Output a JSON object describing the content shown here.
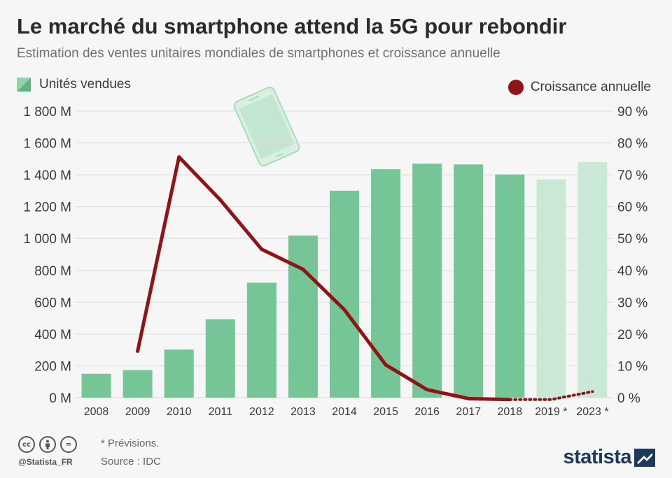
{
  "header": {
    "title": "Le marché du smartphone attend la 5G pour rebondir",
    "subtitle": "Estimation des ventes unitaires mondiales de smartphones et croissance annuelle"
  },
  "legend": {
    "bars_label": "Unités vendues",
    "line_label": "Croissance annuelle"
  },
  "footer": {
    "note": "* Prévisions.",
    "source": "Source : IDC",
    "handle": "@Statista_FR",
    "logo": "statista",
    "cc_icons": [
      "cc",
      "by",
      "="
    ]
  },
  "colors": {
    "bar": "#76c597",
    "bar_forecast": "#c9e8d5",
    "line": "#8f1416",
    "text": "#3a3a3a",
    "background": "#f6f6f6"
  },
  "chart_data": {
    "type": "bar",
    "title": "Le marché du smartphone attend la 5G pour rebondir",
    "categories": [
      "2008",
      "2009",
      "2010",
      "2011",
      "2012",
      "2013",
      "2014",
      "2015",
      "2016",
      "2017",
      "2018",
      "2019 *",
      "2023 *"
    ],
    "forecast": [
      false,
      false,
      false,
      false,
      false,
      false,
      false,
      false,
      false,
      false,
      false,
      true,
      true
    ],
    "series": [
      {
        "name": "Unités vendues",
        "type": "bar",
        "axis": "left",
        "values": [
          150,
          173,
          302,
          492,
          722,
          1018,
          1300,
          1435,
          1470,
          1465,
          1402,
          1371,
          1480
        ]
      },
      {
        "name": "Croissance annuelle",
        "type": "line",
        "axis": "right",
        "values": [
          null,
          14.6,
          75.6,
          62.1,
          46.6,
          40.3,
          27.6,
          10.3,
          2.5,
          -0.3,
          -0.6,
          -0.6,
          1.9
        ],
        "dotted_from_index": 11
      }
    ],
    "y_left": {
      "ticks": [
        "0 M",
        "200 M",
        "400 M",
        "600 M",
        "800 M",
        "1 000 M",
        "1 200 M",
        "1 400 M",
        "1 600 M",
        "1 800 M"
      ],
      "ylim": [
        0,
        1800
      ]
    },
    "y_right": {
      "ticks": [
        "0 %",
        "10 %",
        "20 %",
        "30 %",
        "40 %",
        "50 %",
        "60 %",
        "70 %",
        "80 %",
        "90 %"
      ],
      "ylim": [
        0,
        90
      ]
    },
    "grid": true,
    "legend": "top"
  }
}
